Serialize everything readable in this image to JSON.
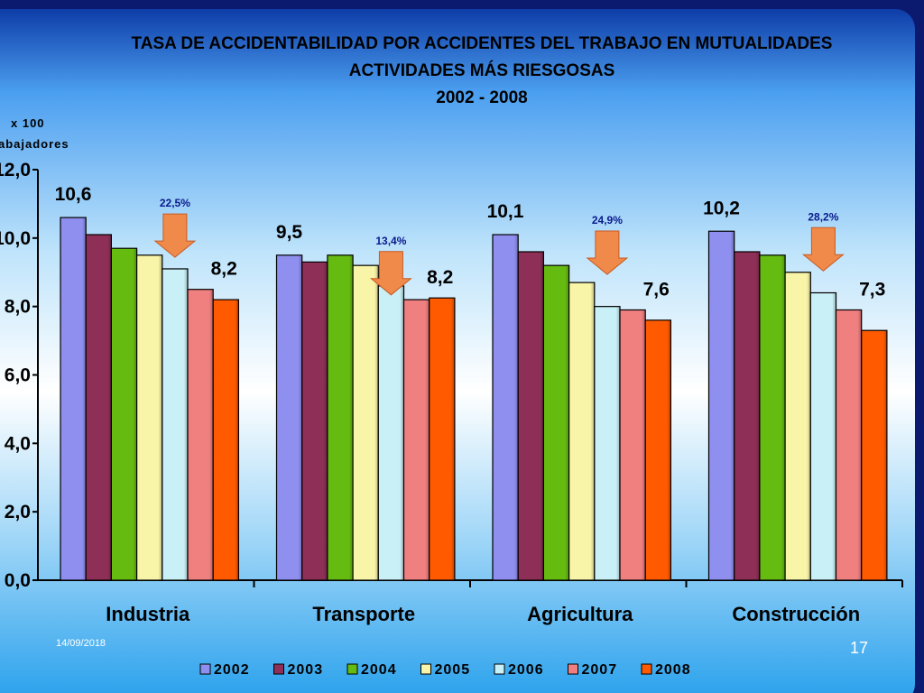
{
  "slide": {
    "date": "14/09/2018",
    "page_number": "17"
  },
  "colors": {
    "series": [
      "#8f8ff0",
      "#8e2f57",
      "#66bb11",
      "#f8f4a8",
      "#c8f0f6",
      "#f07f80",
      "#ff5a00"
    ],
    "arrow": "#f08a4a",
    "percent_text": "#0a1a8c"
  },
  "chart_data": {
    "type": "bar",
    "title": "TASA DE ACCIDENTABILIDAD POR ACCIDENTES DEL TRABAJO EN MUTUALIDADES",
    "subtitle": "ACTIVIDADES MÁS RIESGOSAS",
    "period": "2002 - 2008",
    "ylabel_line1": "x 100",
    "ylabel_line2": "abajadores",
    "ylim": [
      0,
      12
    ],
    "yticks": [
      "0,0",
      "2,0",
      "4,0",
      "6,0",
      "8,0",
      "10,0",
      "12,0"
    ],
    "categories": [
      "Industria",
      "Transporte",
      "Agricultura",
      "Construcción"
    ],
    "series": [
      {
        "name": "2002",
        "values": [
          10.6,
          9.5,
          10.1,
          10.2
        ]
      },
      {
        "name": "2003",
        "values": [
          10.1,
          9.3,
          9.6,
          9.6
        ]
      },
      {
        "name": "2004",
        "values": [
          9.7,
          9.5,
          9.2,
          9.5
        ]
      },
      {
        "name": "2005",
        "values": [
          9.5,
          9.2,
          8.7,
          9.0
        ]
      },
      {
        "name": "2006",
        "values": [
          9.1,
          8.6,
          8.0,
          8.4
        ]
      },
      {
        "name": "2007",
        "values": [
          8.5,
          8.2,
          7.9,
          7.9
        ]
      },
      {
        "name": "2008",
        "values": [
          8.2,
          8.25,
          7.6,
          7.3
        ]
      }
    ],
    "start_labels": [
      "10,6",
      "9,5",
      "10,1",
      "10,2"
    ],
    "end_labels": [
      "8,2",
      "8,2",
      "7,6",
      "7,3"
    ],
    "reductions": [
      "22,5%",
      "13,4%",
      "24,9%",
      "28,2%"
    ],
    "legend_position": "bottom",
    "grid": false
  }
}
